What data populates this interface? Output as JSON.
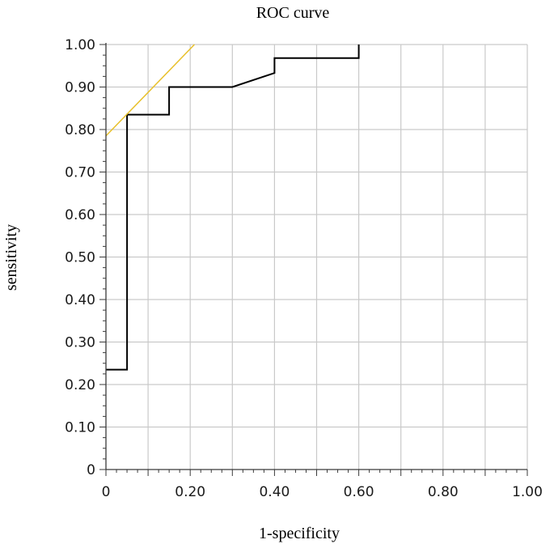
{
  "chart_data": {
    "type": "line",
    "title": "ROC curve",
    "xlabel": "1-specificity",
    "ylabel": "sensitivity",
    "xlim": [
      0,
      1
    ],
    "ylim": [
      0,
      1
    ],
    "x_ticks": [
      0,
      0.2,
      0.4,
      0.6,
      0.8,
      1.0
    ],
    "x_tick_labels": [
      "0",
      "0.20",
      "0.40",
      "0.60",
      "0.80",
      "1.00"
    ],
    "y_ticks": [
      0,
      0.1,
      0.2,
      0.3,
      0.4,
      0.5,
      0.6,
      0.7,
      0.8,
      0.9,
      1.0
    ],
    "y_tick_labels": [
      "0",
      "0.10",
      "0.20",
      "0.30",
      "0.40",
      "0.50",
      "0.60",
      "0.70",
      "0.80",
      "0.90",
      "1.00"
    ],
    "grid": true,
    "series": [
      {
        "color": "#000000",
        "x": [
          0,
          0.05,
          0.05,
          0.15,
          0.15,
          0.3,
          0.4,
          0.4,
          0.6,
          0.6
        ],
        "y": [
          0.235,
          0.235,
          0.835,
          0.835,
          0.9,
          0.9,
          0.933,
          0.968,
          0.968,
          1.0
        ]
      },
      {
        "color": "#e8c02a",
        "x": [
          0,
          0.21
        ],
        "y": [
          0.785,
          1.0
        ]
      }
    ]
  }
}
